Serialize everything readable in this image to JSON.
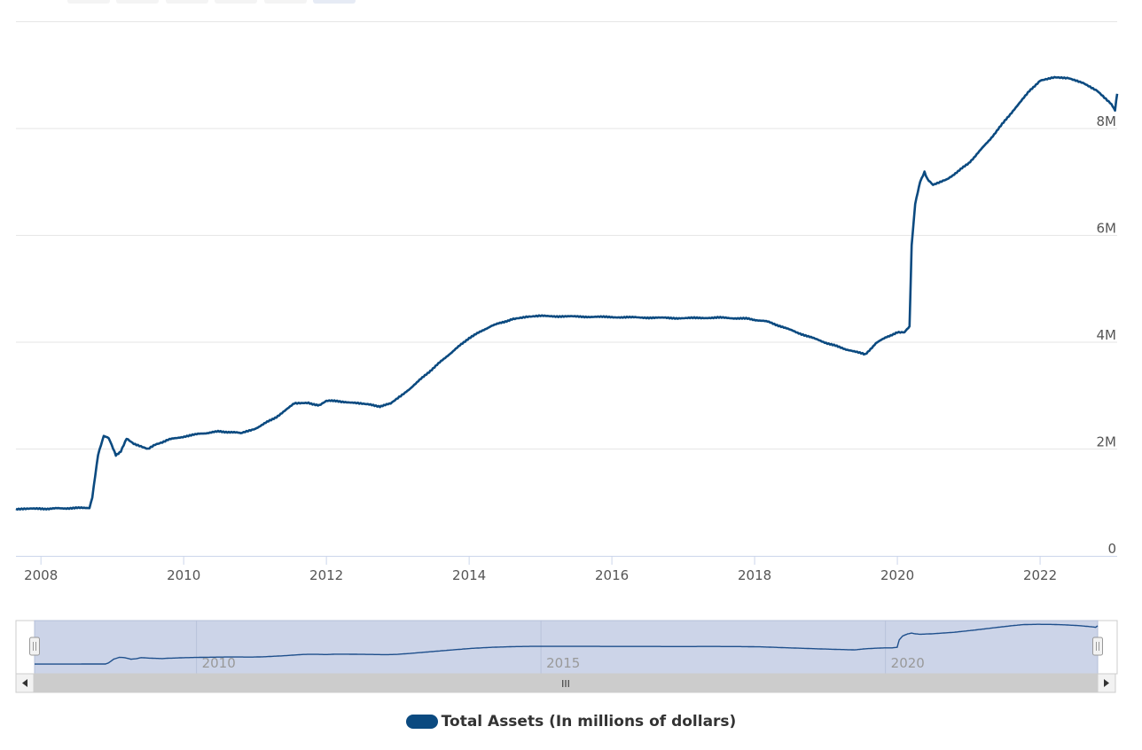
{
  "colors": {
    "series": "#0b4a80",
    "navigator_fill": "#ccd4e8",
    "navigator_line": "#1e4f8c",
    "grid": "#e6e6e6",
    "scrollbar_track": "#cccccc"
  },
  "zoom_buttons": [
    "",
    "",
    "",
    "",
    "",
    ""
  ],
  "chart_data": {
    "type": "line",
    "title": "",
    "xlabel": "",
    "ylabel": "",
    "x_range": [
      2007.65,
      2023.08
    ],
    "ylim": [
      0,
      10000000
    ],
    "y_ticks": [
      {
        "value": 0,
        "label": "0"
      },
      {
        "value": 2000000,
        "label": "2M"
      },
      {
        "value": 4000000,
        "label": "4M"
      },
      {
        "value": 6000000,
        "label": "6M"
      },
      {
        "value": 8000000,
        "label": "8M"
      }
    ],
    "x_ticks": [
      {
        "value": 2008,
        "label": "2008"
      },
      {
        "value": 2010,
        "label": "2010"
      },
      {
        "value": 2012,
        "label": "2012"
      },
      {
        "value": 2014,
        "label": "2014"
      },
      {
        "value": 2016,
        "label": "2016"
      },
      {
        "value": 2018,
        "label": "2018"
      },
      {
        "value": 2020,
        "label": "2020"
      },
      {
        "value": 2022,
        "label": "2022"
      }
    ],
    "grid": true,
    "legend_position": "bottom-center",
    "series": [
      {
        "name": "Total Assets (In millions of dollars)",
        "x": [
          2007.65,
          2008.0,
          2008.3,
          2008.68,
          2008.72,
          2008.8,
          2008.88,
          2008.95,
          2009.05,
          2009.12,
          2009.2,
          2009.3,
          2009.4,
          2009.5,
          2009.6,
          2009.7,
          2009.8,
          2009.95,
          2010.2,
          2010.5,
          2010.8,
          2011.0,
          2011.3,
          2011.55,
          2011.75,
          2011.9,
          2012.0,
          2012.15,
          2012.4,
          2012.6,
          2012.75,
          2012.9,
          2013.1,
          2013.4,
          2013.7,
          2014.0,
          2014.3,
          2014.6,
          2014.8,
          2015.0,
          2015.5,
          2016.0,
          2016.5,
          2017.0,
          2017.5,
          2017.9,
          2018.2,
          2018.6,
          2019.0,
          2019.3,
          2019.55,
          2019.7,
          2019.85,
          2020.0,
          2020.1,
          2020.17,
          2020.2,
          2020.25,
          2020.32,
          2020.38,
          2020.42,
          2020.5,
          2020.7,
          2021.0,
          2021.3,
          2021.6,
          2021.85,
          2022.0,
          2022.2,
          2022.4,
          2022.6,
          2022.8,
          2023.0,
          2023.05,
          2023.08
        ],
        "values": [
          880000,
          880000,
          890000,
          900000,
          1100000,
          1900000,
          2250000,
          2200000,
          1880000,
          1960000,
          2200000,
          2100000,
          2050000,
          2000000,
          2080000,
          2120000,
          2180000,
          2220000,
          2280000,
          2330000,
          2300000,
          2380000,
          2600000,
          2850000,
          2860000,
          2820000,
          2900000,
          2900000,
          2860000,
          2830000,
          2800000,
          2850000,
          3050000,
          3400000,
          3750000,
          4080000,
          4300000,
          4430000,
          4470000,
          4490000,
          4480000,
          4470000,
          4460000,
          4450000,
          4460000,
          4440000,
          4380000,
          4180000,
          3990000,
          3860000,
          3770000,
          3980000,
          4100000,
          4180000,
          4180000,
          4300000,
          5800000,
          6600000,
          7000000,
          7180000,
          7050000,
          6940000,
          7050000,
          7350000,
          7800000,
          8300000,
          8700000,
          8900000,
          8960000,
          8940000,
          8850000,
          8700000,
          8450000,
          8350000,
          8650000
        ]
      }
    ]
  },
  "navigator": {
    "labels": [
      {
        "value": 2010,
        "label": "2010"
      },
      {
        "value": 2015,
        "label": "2015"
      },
      {
        "value": 2020,
        "label": "2020"
      }
    ],
    "grip": "III"
  },
  "legend": {
    "label": "Total Assets (In millions of dollars)"
  }
}
